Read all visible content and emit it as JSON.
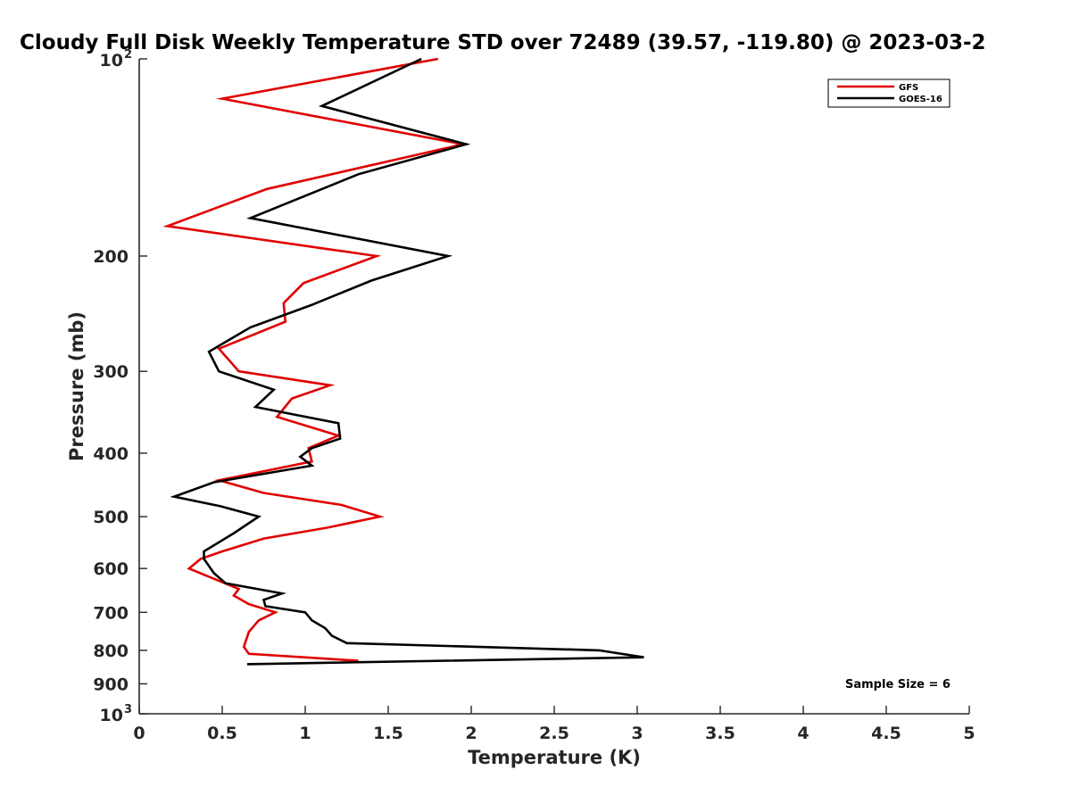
{
  "chart_data": {
    "type": "line",
    "title": "Cloudy Full Disk Weekly Temperature STD over 72489 (39.57, -119.80) @ 2023-03-2",
    "xlabel": "Temperature (K)",
    "ylabel": "Pressure (mb)",
    "xlim": [
      0,
      5
    ],
    "ylim": [
      100,
      1000
    ],
    "y_scale": "log",
    "y_reversed": true,
    "grid": false,
    "legend_position": "top-right",
    "x_ticks": [
      "0",
      "0.5",
      "1",
      "1.5",
      "2",
      "2.5",
      "3",
      "3.5",
      "4",
      "4.5",
      "5"
    ],
    "x_tick_values": [
      0,
      0.5,
      1,
      1.5,
      2,
      2.5,
      3,
      3.5,
      4,
      4.5,
      5
    ],
    "y_ticks": [
      {
        "value": 100,
        "base": "10",
        "exp": "2"
      },
      {
        "value": 200,
        "label": "200"
      },
      {
        "value": 300,
        "label": "300"
      },
      {
        "value": 400,
        "label": "400"
      },
      {
        "value": 500,
        "label": "500"
      },
      {
        "value": 600,
        "label": "600"
      },
      {
        "value": 700,
        "label": "700"
      },
      {
        "value": 800,
        "label": "800"
      },
      {
        "value": 900,
        "label": "900"
      },
      {
        "value": 1000,
        "base": "10",
        "exp": "3"
      }
    ],
    "annotation": "Sample Size = 6",
    "series": [
      {
        "name": "GFS",
        "color": "#e00000",
        "points": [
          [
            1.8,
            100
          ],
          [
            0.5,
            115
          ],
          [
            1.95,
            135
          ],
          [
            0.77,
            158
          ],
          [
            0.17,
            180
          ],
          [
            1.43,
            200
          ],
          [
            0.99,
            220
          ],
          [
            0.87,
            236
          ],
          [
            0.88,
            252
          ],
          [
            0.48,
            277
          ],
          [
            0.6,
            300
          ],
          [
            1.15,
            315
          ],
          [
            0.92,
            330
          ],
          [
            0.83,
            352
          ],
          [
            1.2,
            376
          ],
          [
            1.02,
            393
          ],
          [
            1.04,
            412
          ],
          [
            0.48,
            440
          ],
          [
            0.75,
            460
          ],
          [
            1.22,
            480
          ],
          [
            1.45,
            500
          ],
          [
            1.13,
            520
          ],
          [
            0.75,
            540
          ],
          [
            0.5,
            565
          ],
          [
            0.37,
            580
          ],
          [
            0.3,
            600
          ],
          [
            0.47,
            625
          ],
          [
            0.6,
            645
          ],
          [
            0.57,
            660
          ],
          [
            0.66,
            680
          ],
          [
            0.82,
            700
          ],
          [
            0.72,
            720
          ],
          [
            0.66,
            750
          ],
          [
            0.63,
            790
          ],
          [
            0.66,
            810
          ],
          [
            1.32,
            830
          ]
        ]
      },
      {
        "name": "GOES-16",
        "color": "#000000",
        "points": [
          [
            1.7,
            100
          ],
          [
            1.1,
            118
          ],
          [
            1.97,
            135
          ],
          [
            1.32,
            150
          ],
          [
            0.67,
            175
          ],
          [
            1.86,
            200
          ],
          [
            1.4,
            218
          ],
          [
            1.03,
            238
          ],
          [
            0.67,
            257
          ],
          [
            0.42,
            280
          ],
          [
            0.48,
            300
          ],
          [
            0.81,
            320
          ],
          [
            0.7,
            340
          ],
          [
            1.2,
            360
          ],
          [
            1.21,
            380
          ],
          [
            1.04,
            393
          ],
          [
            0.97,
            405
          ],
          [
            1.04,
            418
          ],
          [
            0.45,
            443
          ],
          [
            0.21,
            466
          ],
          [
            0.49,
            482
          ],
          [
            0.72,
            500
          ],
          [
            0.57,
            530
          ],
          [
            0.39,
            565
          ],
          [
            0.39,
            580
          ],
          [
            0.45,
            610
          ],
          [
            0.52,
            632
          ],
          [
            0.86,
            655
          ],
          [
            0.75,
            670
          ],
          [
            0.76,
            685
          ],
          [
            1.0,
            700
          ],
          [
            1.04,
            720
          ],
          [
            1.12,
            740
          ],
          [
            1.16,
            760
          ],
          [
            1.25,
            780
          ],
          [
            2.77,
            800
          ],
          [
            3.04,
            820
          ],
          [
            0.65,
            840
          ]
        ]
      }
    ]
  }
}
